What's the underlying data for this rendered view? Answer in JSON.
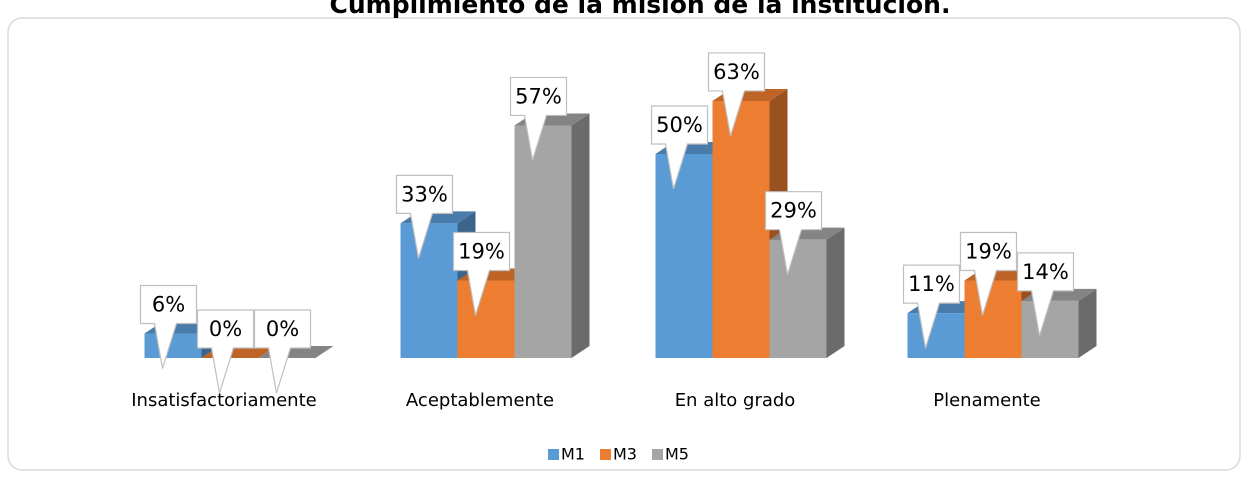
{
  "chart_data": {
    "type": "bar3d",
    "title": "Cumplimiento de la misión de la institución.",
    "categories": [
      "Insatisfactoriamente",
      "Aceptablemente",
      "En alto grado",
      "Plenamente"
    ],
    "series": [
      {
        "name": "M1",
        "color": "#5b9bd5",
        "values": [
          6,
          33,
          50,
          11
        ],
        "value_labels": [
          "6%",
          "33%",
          "50%",
          "11%"
        ]
      },
      {
        "name": "M3",
        "color": "#ed7d31",
        "values": [
          0,
          19,
          63,
          19
        ],
        "value_labels": [
          "0%",
          "19%",
          "63%",
          "19%"
        ]
      },
      {
        "name": "M5",
        "color": "#a5a5a5",
        "values": [
          0,
          57,
          29,
          14
        ],
        "value_labels": [
          "0%",
          "57%",
          "29%",
          "14%"
        ]
      }
    ]
  }
}
